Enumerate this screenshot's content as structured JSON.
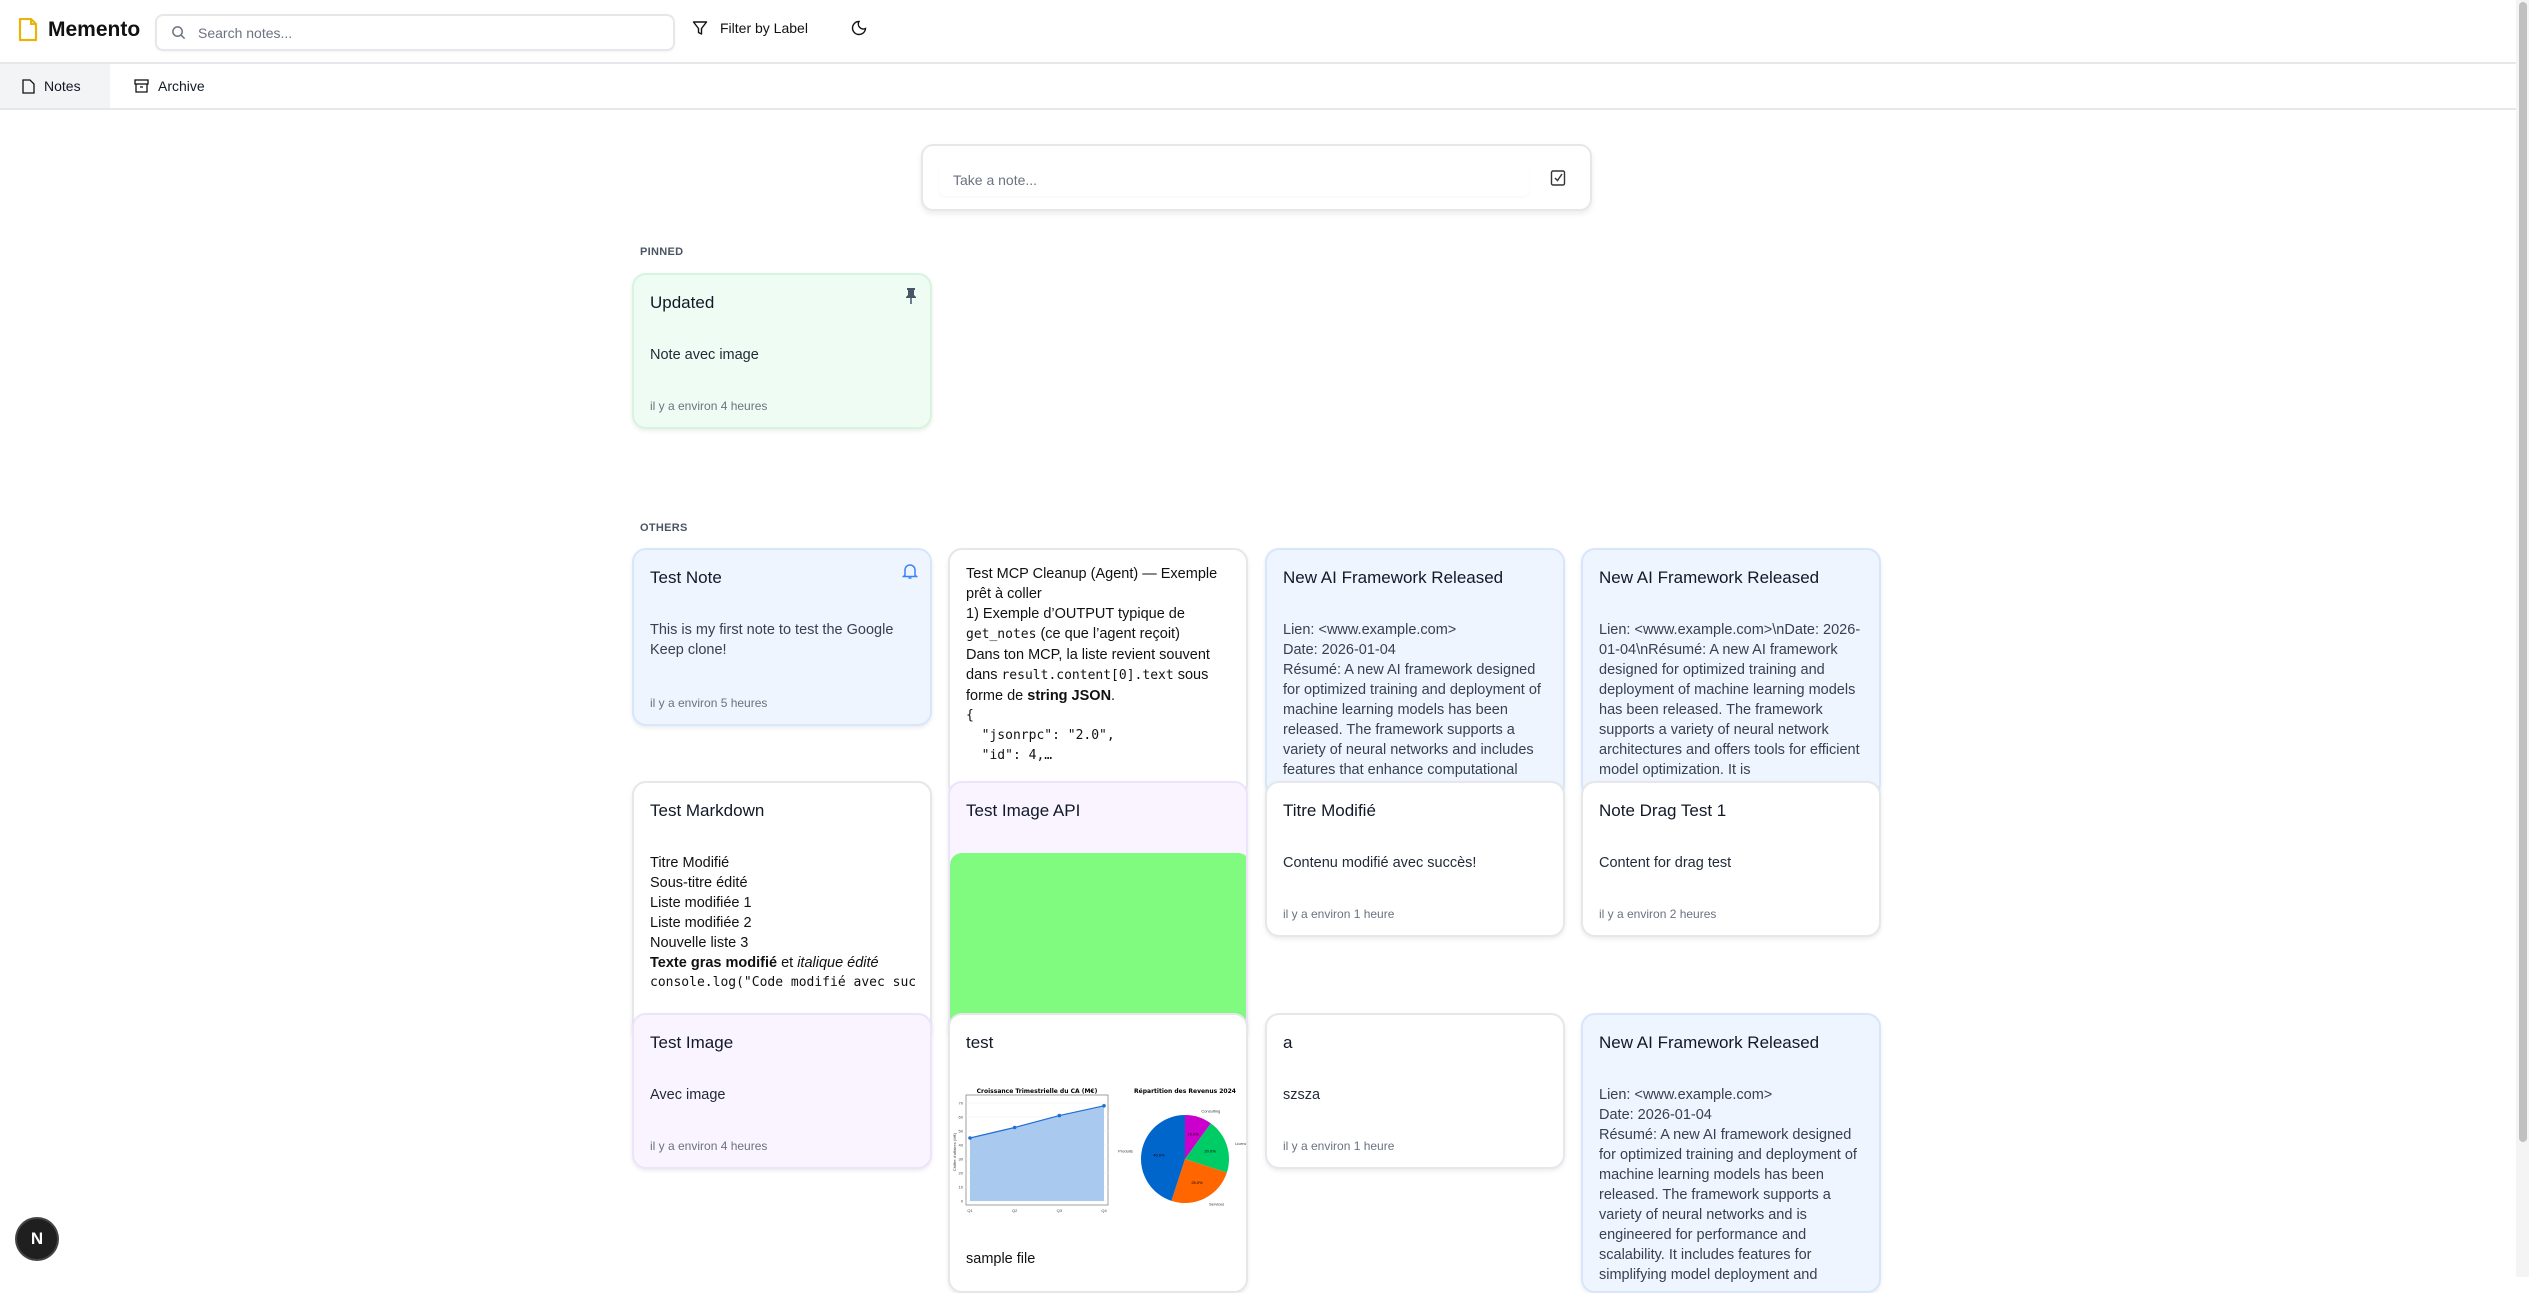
{
  "app": {
    "name": "Memento",
    "accent": "#eab308"
  },
  "header": {
    "search_placeholder": "Search notes...",
    "filter_label": "Filter by Label"
  },
  "tabs": [
    {
      "label": "Notes",
      "icon": "file-icon",
      "active": true
    },
    {
      "label": "Archive",
      "icon": "archive-icon",
      "active": false
    }
  ],
  "composer": {
    "placeholder": "Take a note..."
  },
  "sections": {
    "pinned": "PINNED",
    "others": "OTHERS"
  },
  "pinned": [
    {
      "title": "Updated",
      "body": "Note avec image",
      "time": "il y a environ 4 heures",
      "color": "#effcf3"
    }
  ],
  "notes": {
    "test_note": {
      "title": "Test Note",
      "body": "This is my first note to test the Google Keep clone!",
      "time": "il y a environ 5 heures"
    },
    "mcp": {
      "l1": "Test MCP Cleanup (Agent) — Exemple prêt à coller",
      "l2": "1) Exemple d’OUTPUT typique de",
      "l3a": "get_notes",
      "l3b": " (ce que l’agent reçoit)",
      "l4": "Dans ton MCP, la liste revient souvent",
      "l5a": "dans ",
      "l5b": "result.content[0].text",
      "l5c": " sous",
      "l6a": "forme de ",
      "l6b": "string JSON",
      "l6c": ".",
      "code": "{\n  \"jsonrpc\": \"2.0\",\n  \"id\": 4,…"
    },
    "ai1": {
      "title": "New AI Framework Released",
      "body": "Lien: <www.example.com>\nDate: 2026-01-04\nRésumé: A new AI framework designed for optimized training and deployment of machine learning models has been released. The framework supports a variety of neural networks and includes features that enhance computational"
    },
    "ai2": {
      "title": "New AI Framework Released",
      "body": "Lien: <www.example.com>\\nDate: 2026-01-04\\nRésumé: A new AI framework designed for optimized training and deployment of machine learning models has been released. The framework supports a variety of neural network architectures and offers tools for efficient model optimization. It is"
    },
    "markdown": {
      "title": "Test Markdown",
      "lines": [
        "Titre Modifié",
        "Sous-titre édité",
        "Liste modifiée 1",
        "Liste modifiée 2",
        "Nouvelle liste 3"
      ],
      "bold": "Texte gras modifié",
      "mid": " et ",
      "italic": "italique édité",
      "code": "console.log(\"Code modifié avec succ"
    },
    "image_api": {
      "title": "Test Image API",
      "image_color": "#80fb80"
    },
    "titre": {
      "title": "Titre Modifié",
      "body": "Contenu modifié avec succès!",
      "time": "il y a environ 1 heure"
    },
    "drag": {
      "title": "Note Drag Test 1",
      "body": "Content for drag test",
      "time": "il y a environ 2 heures"
    },
    "image": {
      "title": "Test Image",
      "body": "Avec image",
      "time": "il y a environ 4 heures"
    },
    "test": {
      "title": "test",
      "caption": "sample file"
    },
    "a": {
      "title": "a",
      "body": "szsza",
      "time": "il y a environ 1 heure"
    },
    "ai3": {
      "title": "New AI Framework Released",
      "body": "Lien: <www.example.com>\nDate: 2026-01-04\nRésumé: A new AI framework designed for optimized training and deployment of machine learning models has been released. The framework supports a variety of neural networks and is engineered for performance and scalability. It includes features for simplifying model deployment and"
    }
  },
  "chart_data": [
    {
      "type": "area",
      "title": "Croissance Trimestrielle du CA (M€)",
      "ylabel": "Chiffre d'affaires (M€)",
      "categories": [
        "Q1",
        "Q2",
        "Q3",
        "Q4"
      ],
      "values": [
        45,
        52.5,
        61,
        68
      ],
      "ylim": [
        0,
        70
      ],
      "yticks": [
        0,
        10,
        20,
        30,
        40,
        50,
        60,
        70
      ],
      "grid": true,
      "color": "#1f6fd1"
    },
    {
      "type": "pie",
      "title": "Répartition des Revenus 2024",
      "labels": [
        "Consulting",
        "Licences",
        "Services",
        "Produits"
      ],
      "values": [
        10,
        20,
        25,
        45
      ],
      "pct_labels": [
        "10.0%",
        "20.0%",
        "25.0%",
        "45.0%"
      ],
      "colors": [
        "#cc00cc",
        "#00cc66",
        "#ff6600",
        "#0066cc"
      ]
    }
  ],
  "devtools": {
    "label": "N"
  }
}
